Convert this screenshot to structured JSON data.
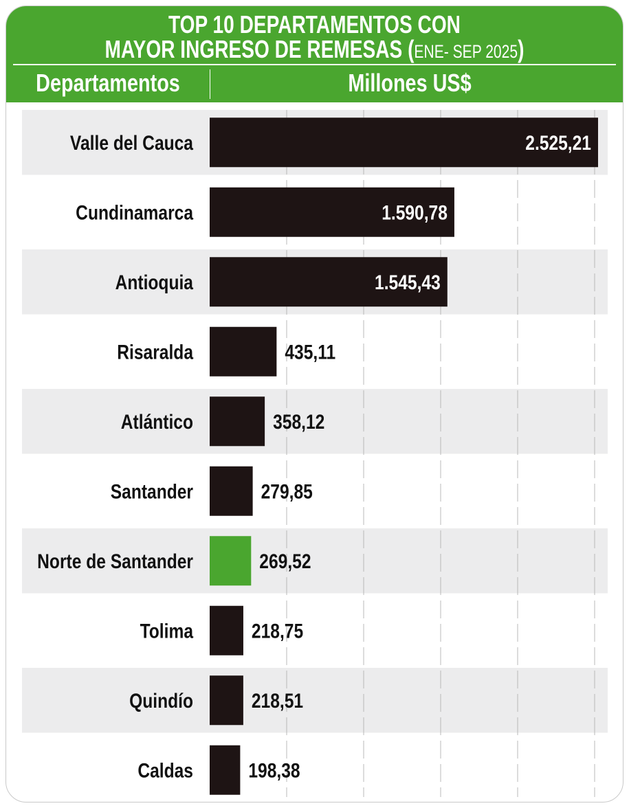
{
  "title": {
    "line1": "TOP 10 DEPARTAMENTOS CON",
    "line2_main": "MAYOR INGRESO DE REMESAS (",
    "line2_small": "ENE- SEP 2025",
    "line2_close": ")"
  },
  "columns": {
    "left": "Departamentos",
    "right": "Millones US$"
  },
  "colors": {
    "header": "#4aa62f",
    "bar": "#1e1414",
    "highlight_bar": "#4aa62f",
    "stripe": "#ececed",
    "grid": "#b8b8b8"
  },
  "chart_data": {
    "type": "bar",
    "orientation": "horizontal",
    "title": "TOP 10 DEPARTAMENTOS CON MAYOR INGRESO DE REMESAS (ENE- SEP 2025)",
    "xlabel": "Millones US$",
    "ylabel": "Departamentos",
    "xlim": [
      0,
      2525.21
    ],
    "grid": true,
    "highlight": "Norte de Santander",
    "categories": [
      "Valle del Cauca",
      "Cundinamarca",
      "Antioquia",
      "Risaralda",
      "Atlántico",
      "Santander",
      "Norte de Santander",
      "Tolima",
      "Quindío",
      "Caldas"
    ],
    "values": [
      2525.21,
      1590.78,
      1545.43,
      435.11,
      358.12,
      279.85,
      269.52,
      218.75,
      218.51,
      198.38
    ],
    "value_labels": [
      "2.525,21",
      "1.590,78",
      "1.545,43",
      "435,11",
      "358,12",
      "279,85",
      "269,52",
      "218,75",
      "218,51",
      "198,38"
    ]
  }
}
